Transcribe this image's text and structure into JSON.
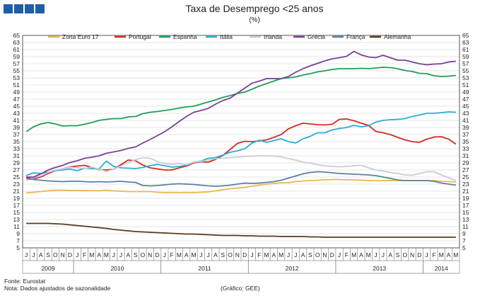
{
  "title": "Taxa de Desemprego <25 anos",
  "subtitle": "(%)",
  "footer": {
    "source": "Fonte: Eurostat",
    "note": "Nota: Dados ajustados de sazonalidade",
    "credit": "(Gráfico: GEE)"
  },
  "colors": {
    "logo": "#1f5ea8"
  },
  "chart_data": {
    "type": "line",
    "x_months": [
      "J",
      "J",
      "A",
      "S",
      "O",
      "N",
      "D",
      "J",
      "F",
      "M",
      "A",
      "M",
      "J",
      "J",
      "A",
      "S",
      "O",
      "N",
      "D",
      "J",
      "F",
      "M",
      "A",
      "M",
      "J",
      "J",
      "A",
      "S",
      "O",
      "N",
      "D",
      "J",
      "F",
      "M",
      "A",
      "M",
      "J",
      "J",
      "A",
      "S",
      "O",
      "N",
      "D",
      "J",
      "F",
      "M",
      "A",
      "M",
      "J",
      "J",
      "A",
      "S",
      "O",
      "N",
      "D",
      "J",
      "F",
      "M",
      "A",
      "M"
    ],
    "years": [
      {
        "label": "2009",
        "start": 0,
        "end": 6
      },
      {
        "label": "2010",
        "start": 7,
        "end": 18
      },
      {
        "label": "2011",
        "start": 19,
        "end": 30
      },
      {
        "label": "2012",
        "start": 31,
        "end": 42
      },
      {
        "label": "2013",
        "start": 43,
        "end": 54
      },
      {
        "label": "2014",
        "start": 55,
        "end": 59
      }
    ],
    "y_ticks": [
      5,
      7,
      9,
      11,
      13,
      15,
      17,
      19,
      21,
      23,
      25,
      27,
      29,
      31,
      33,
      35,
      37,
      39,
      41,
      43,
      45,
      47,
      49,
      51,
      53,
      55,
      57,
      59,
      61,
      63,
      65
    ],
    "ylim": [
      5,
      65
    ],
    "legend_position": "top",
    "series": [
      {
        "name": "Zona Euro 17",
        "color": "#e8b84b",
        "values": [
          20.5,
          20.7,
          20.9,
          21.1,
          21.3,
          21.3,
          21.2,
          21.2,
          21.2,
          21.2,
          21.1,
          21.3,
          21.1,
          21.0,
          20.9,
          20.9,
          20.9,
          20.9,
          20.7,
          20.6,
          20.6,
          20.6,
          20.6,
          20.6,
          20.7,
          20.8,
          21.1,
          21.4,
          21.7,
          21.9,
          22.1,
          22.4,
          22.7,
          23.0,
          23.2,
          23.4,
          23.4,
          23.7,
          23.9,
          24.0,
          24.1,
          24.2,
          24.3,
          24.3,
          24.2,
          24.2,
          24.1,
          24.0,
          24.0,
          24.0,
          24.0,
          24.0,
          24.0,
          24.0,
          24.0,
          24.0,
          24.0,
          23.8,
          23.7,
          23.6
        ]
      },
      {
        "name": "Portugal",
        "color": "#d62a26",
        "values": [
          24.8,
          24.5,
          25.0,
          26.0,
          26.8,
          27.3,
          27.9,
          28.1,
          28.3,
          27.7,
          27.1,
          27.0,
          27.2,
          28.5,
          29.8,
          29.6,
          28.4,
          27.6,
          27.3,
          27.0,
          27.0,
          27.6,
          28.1,
          29.0,
          29.3,
          29.2,
          30.0,
          31.1,
          32.8,
          34.5,
          35.1,
          35.0,
          35.2,
          35.5,
          36.2,
          37.0,
          38.6,
          39.5,
          40.2,
          40.0,
          39.8,
          39.7,
          39.9,
          41.3,
          41.4,
          40.9,
          40.2,
          39.6,
          37.9,
          37.5,
          37.0,
          36.2,
          35.5,
          35.0,
          34.8,
          35.7,
          36.3,
          36.4,
          35.7,
          34.3
        ]
      },
      {
        "name": "Espanha",
        "color": "#1f9e5a",
        "values": [
          37.8,
          39.2,
          40.0,
          40.4,
          40.0,
          39.4,
          39.5,
          39.5,
          39.9,
          40.4,
          41.0,
          41.3,
          41.5,
          41.5,
          42.0,
          42.1,
          42.9,
          43.3,
          43.5,
          43.8,
          44.1,
          44.5,
          44.8,
          45.0,
          45.6,
          46.2,
          46.8,
          47.5,
          48.0,
          48.6,
          49.0,
          49.8,
          50.7,
          51.4,
          52.1,
          52.8,
          53.0,
          53.3,
          53.8,
          54.2,
          54.7,
          55.0,
          55.4,
          55.6,
          55.6,
          55.6,
          55.7,
          55.6,
          55.8,
          56.0,
          55.9,
          55.6,
          55.1,
          54.8,
          54.3,
          54.2,
          53.6,
          53.4,
          53.5,
          53.7
        ]
      },
      {
        "name": "Itália",
        "color": "#2eaadb",
        "values": [
          25.4,
          26.2,
          26.0,
          26.4,
          26.8,
          27.0,
          27.3,
          26.8,
          27.5,
          27.4,
          27.3,
          29.5,
          28.0,
          27.6,
          27.5,
          27.4,
          27.7,
          28.2,
          28.6,
          28.2,
          27.8,
          28.0,
          28.3,
          29.2,
          29.5,
          30.3,
          30.5,
          31.2,
          32.0,
          32.4,
          33.0,
          34.6,
          35.4,
          34.8,
          35.3,
          35.8,
          35.0,
          34.6,
          35.8,
          36.5,
          37.5,
          37.5,
          38.3,
          38.7,
          39.0,
          39.6,
          39.2,
          39.5,
          40.5,
          41.0,
          41.2,
          41.3,
          41.5,
          42.1,
          42.5,
          43.0,
          43.0,
          43.2,
          43.4,
          43.3
        ]
      },
      {
        "name": "Irlanda",
        "color": "#c8ccd6",
        "values": [
          24.0,
          24.8,
          25.3,
          26.3,
          27.0,
          27.3,
          27.8,
          27.6,
          27.4,
          27.8,
          27.2,
          26.6,
          27.2,
          28.1,
          29.1,
          29.9,
          30.5,
          30.3,
          29.4,
          28.8,
          28.6,
          28.8,
          28.5,
          29.2,
          29.4,
          29.8,
          30.2,
          30.3,
          30.5,
          30.6,
          30.8,
          30.9,
          31.0,
          31.0,
          30.9,
          30.7,
          30.2,
          29.8,
          29.2,
          28.9,
          28.5,
          28.2,
          28.0,
          27.9,
          28.0,
          28.2,
          28.3,
          27.6,
          27.0,
          26.7,
          26.3,
          26.0,
          25.6,
          25.5,
          26.0,
          26.5,
          26.5,
          25.6,
          24.8,
          24.0
        ]
      },
      {
        "name": "Grécia",
        "color": "#7a3f9a",
        "values": [
          25.0,
          25.0,
          25.9,
          27.0,
          27.7,
          28.3,
          29.1,
          29.6,
          30.3,
          30.6,
          31.0,
          31.7,
          32.1,
          32.5,
          33.1,
          33.5,
          34.6,
          35.6,
          36.7,
          37.8,
          39.2,
          40.7,
          42.1,
          43.3,
          43.8,
          44.4,
          45.6,
          46.6,
          47.3,
          48.7,
          50.1,
          51.5,
          52.1,
          52.8,
          52.8,
          52.8,
          53.4,
          54.6,
          55.6,
          56.4,
          57.1,
          57.8,
          58.4,
          58.7,
          59.1,
          60.5,
          59.5,
          58.9,
          58.7,
          59.4,
          58.7,
          58.0,
          58.0,
          57.5,
          57.0,
          56.7,
          56.9,
          57.0,
          57.5,
          57.7
        ]
      },
      {
        "name": "França",
        "color": "#5a7fa8",
        "values": [
          24.6,
          24.3,
          24.1,
          23.9,
          23.8,
          23.7,
          23.8,
          23.8,
          23.7,
          23.6,
          23.7,
          23.6,
          23.7,
          23.8,
          23.6,
          23.5,
          22.6,
          22.5,
          22.6,
          22.8,
          23.0,
          23.1,
          23.0,
          22.9,
          22.7,
          22.5,
          22.4,
          22.5,
          22.7,
          23.0,
          23.3,
          23.2,
          23.3,
          23.5,
          23.7,
          24.1,
          24.7,
          25.3,
          25.9,
          26.3,
          26.5,
          26.4,
          26.2,
          26.0,
          25.9,
          25.8,
          25.7,
          25.6,
          25.4,
          25.0,
          24.6,
          24.2,
          24.0,
          24.0,
          24.0,
          24.0,
          23.8,
          23.3,
          23.0,
          22.7
        ]
      },
      {
        "name": "Alemanha",
        "color": "#5b3a1e",
        "values": [
          11.9,
          11.9,
          11.9,
          11.9,
          11.8,
          11.7,
          11.5,
          11.3,
          11.1,
          10.9,
          10.7,
          10.5,
          10.2,
          10.0,
          9.8,
          9.6,
          9.5,
          9.4,
          9.3,
          9.2,
          9.1,
          9.0,
          8.9,
          8.9,
          8.8,
          8.7,
          8.6,
          8.5,
          8.5,
          8.5,
          8.4,
          8.4,
          8.3,
          8.3,
          8.3,
          8.2,
          8.2,
          8.2,
          8.2,
          8.1,
          8.1,
          8.0,
          8.0,
          8.0,
          8.0,
          8.0,
          8.0,
          8.0,
          8.0,
          8.0,
          8.0,
          8.0,
          8.0,
          8.0,
          8.0,
          8.0,
          8.0,
          8.0,
          8.0,
          8.0
        ]
      }
    ]
  }
}
